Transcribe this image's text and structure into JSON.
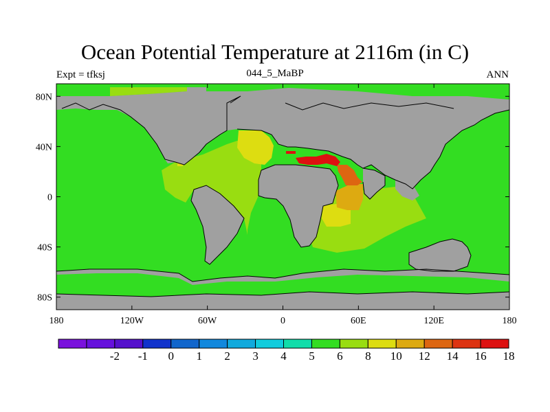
{
  "title": "Ocean Potential Temperature at 2116m (in C)",
  "left_label": "Expt = tfksj",
  "center_label": "044_5_MaBP",
  "right_label": "ANN",
  "colors": {
    "land": "#a0a0a0",
    "c8": "#33dd22",
    "c10": "#99dd11",
    "c12": "#dddd11",
    "c14": "#ddaa11",
    "c16": "#dd6611",
    "c18": "#dd1111"
  },
  "map": {
    "lon_ticks": [
      {
        "value": -180,
        "label": "180"
      },
      {
        "value": -120,
        "label": "120W"
      },
      {
        "value": -60,
        "label": "60W"
      },
      {
        "value": 0,
        "label": "0"
      },
      {
        "value": 60,
        "label": "60E"
      },
      {
        "value": 120,
        "label": "120E"
      },
      {
        "value": 180,
        "label": "180"
      }
    ],
    "lat_ticks": [
      {
        "value": 80,
        "label": "80N"
      },
      {
        "value": 40,
        "label": "40N"
      },
      {
        "value": 0,
        "label": "0"
      },
      {
        "value": -40,
        "label": "40S"
      },
      {
        "value": -80,
        "label": "80S"
      }
    ]
  },
  "colorbar": {
    "colors": [
      "#7a11dd",
      "#6611dd",
      "#5511cc",
      "#1133cc",
      "#1166cc",
      "#1188dd",
      "#11aadd",
      "#11ccdd",
      "#11ddaa",
      "#33dd22",
      "#99dd11",
      "#dddd11",
      "#ddaa11",
      "#dd6611",
      "#dd3311",
      "#dd1111"
    ],
    "labels": [
      {
        "index": 2,
        "label": "-2"
      },
      {
        "index": 3,
        "label": "-1"
      },
      {
        "index": 4,
        "label": "0"
      },
      {
        "index": 5,
        "label": "1"
      },
      {
        "index": 6,
        "label": "2"
      },
      {
        "index": 7,
        "label": "3"
      },
      {
        "index": 8,
        "label": "4"
      },
      {
        "index": 9,
        "label": "5"
      },
      {
        "index": 10,
        "label": "6"
      },
      {
        "index": 11,
        "label": "8"
      },
      {
        "index": 12,
        "label": "10"
      },
      {
        "index": 13,
        "label": "12"
      },
      {
        "index": 14,
        "label": "14"
      },
      {
        "index": 15,
        "label": "16"
      },
      {
        "index": 16,
        "label": "18"
      }
    ]
  }
}
